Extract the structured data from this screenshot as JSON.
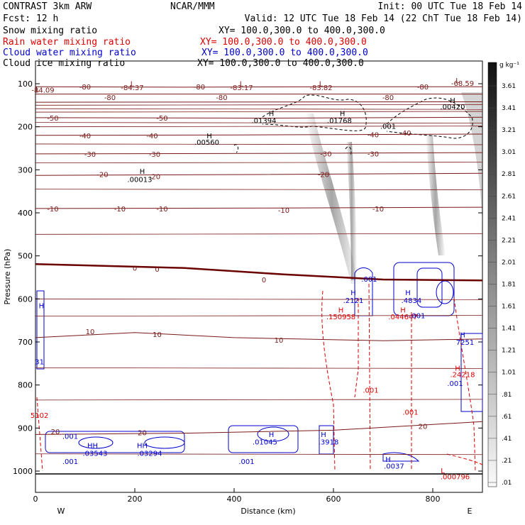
{
  "header": {
    "model": "CONTRAST  3km ARW",
    "center": "NCAR/MMM",
    "init": "Init: 00 UTC Tue 18 Feb 14",
    "fcst": "Fcst:   12 h",
    "valid": "Valid: 12 UTC Tue 18 Feb 14 (22 ChT Tue 18 Feb 14)"
  },
  "fields": [
    {
      "name": "Snow mixing ratio",
      "xy": "XY= 100.0,300.0 to 400.0,300.0",
      "color": "#000000"
    },
    {
      "name": "Rain water mixing ratio",
      "xy": "XY= 100.0,300.0 to 400.0,300.0",
      "color": "#e00000"
    },
    {
      "name": "Cloud water mixing ratio",
      "xy": "XY= 100.0,300.0 to 400.0,300.0",
      "color": "#0000cc"
    },
    {
      "name": "Cloud ice mixing ratio",
      "xy": "XY= 100.0,300.0 to 400.0,300.0",
      "color": "#000000"
    }
  ],
  "colors": {
    "temperature": "#7a1a1a",
    "freezing": "#6a0000",
    "rain": "#e00000",
    "cloud_water": "#0000cc",
    "cloud_ice": "#000000"
  },
  "chart_data": {
    "type": "cross-section",
    "ylabel": "Pressure (hPa)",
    "xlabel": "Distance (km)",
    "x_range": [
      0,
      900
    ],
    "y_range": [
      1020,
      50
    ],
    "x_ticks": [
      0,
      200,
      400,
      600,
      800
    ],
    "y_ticks": [
      100,
      200,
      300,
      400,
      500,
      600,
      700,
      800,
      900,
      1000
    ],
    "endpoints": {
      "left": "W",
      "right": "E"
    },
    "colorbar": {
      "unit": "g kg⁻¹",
      "labels": [
        "3.61",
        "3.41",
        "3.21",
        "3.01",
        "2.81",
        "2.61",
        "2.41",
        "2.21",
        "2.01",
        "1.81",
        "1.61",
        "1.41",
        "1.21",
        "1.01",
        ".81",
        ".61",
        ".41",
        ".21",
        ".01"
      ]
    },
    "temperature_contours": [
      {
        "label": "-80",
        "points": [
          [
            0,
            107
          ],
          [
            300,
            108
          ],
          [
            600,
            107
          ],
          [
            900,
            107
          ]
        ]
      },
      {
        "label": "-70",
        "points": [
          [
            0,
            124
          ],
          [
            900,
            124
          ]
        ]
      },
      {
        "label": "-60",
        "points": [
          [
            0,
            143
          ],
          [
            900,
            142
          ]
        ]
      },
      {
        "label": "-50",
        "points": [
          [
            0,
            179
          ],
          [
            450,
            180
          ],
          [
            900,
            178
          ]
        ]
      },
      {
        "label": "-40",
        "points": [
          [
            0,
            220
          ],
          [
            400,
            219
          ],
          [
            900,
            217
          ]
        ]
      },
      {
        "label": "-30",
        "points": [
          [
            0,
            263
          ],
          [
            450,
            262
          ],
          [
            900,
            260
          ]
        ]
      },
      {
        "label": "-20",
        "points": [
          [
            0,
            313
          ],
          [
            450,
            311
          ],
          [
            900,
            308
          ]
        ]
      },
      {
        "label": "-10",
        "points": [
          [
            0,
            390
          ],
          [
            450,
            389
          ],
          [
            900,
            387
          ]
        ]
      },
      {
        "label": "0",
        "points": [
          [
            0,
            519
          ],
          [
            300,
            528
          ],
          [
            500,
            543
          ],
          [
            700,
            555
          ],
          [
            900,
            557
          ]
        ]
      },
      {
        "label": "10",
        "points": [
          [
            0,
            690
          ],
          [
            200,
            678
          ],
          [
            400,
            690
          ],
          [
            700,
            697
          ],
          [
            900,
            693
          ]
        ]
      },
      {
        "label": "20",
        "points": [
          [
            0,
            915
          ],
          [
            300,
            912
          ],
          [
            600,
            905
          ],
          [
            900,
            885
          ]
        ]
      }
    ],
    "contour_labels": [
      {
        "text": "-80",
        "x": 100,
        "p": 107,
        "field": "temperature"
      },
      {
        "text": "-80",
        "x": 330,
        "p": 107,
        "field": "temperature"
      },
      {
        "text": "-80",
        "x": 780,
        "p": 107,
        "field": "temperature"
      },
      {
        "text": "-80",
        "x": 150,
        "p": 131,
        "field": "temperature"
      },
      {
        "text": "-80",
        "x": 375,
        "p": 131,
        "field": "temperature"
      },
      {
        "text": "-80",
        "x": 710,
        "p": 131,
        "field": "temperature"
      },
      {
        "text": "-50",
        "x": 35,
        "p": 179,
        "field": "temperature"
      },
      {
        "text": "-50",
        "x": 255,
        "p": 179,
        "field": "temperature"
      },
      {
        "text": "-40",
        "x": 100,
        "p": 220,
        "field": "temperature"
      },
      {
        "text": "-40",
        "x": 235,
        "p": 220,
        "field": "temperature"
      },
      {
        "text": "-40",
        "x": 680,
        "p": 218,
        "field": "temperature"
      },
      {
        "text": "-40",
        "x": 745,
        "p": 214,
        "field": "temperature"
      },
      {
        "text": "-30",
        "x": 110,
        "p": 263,
        "field": "temperature"
      },
      {
        "text": "-30",
        "x": 240,
        "p": 263,
        "field": "temperature"
      },
      {
        "text": "-30",
        "x": 585,
        "p": 262,
        "field": "temperature"
      },
      {
        "text": "-30",
        "x": 680,
        "p": 262,
        "field": "temperature"
      },
      {
        "text": "-20",
        "x": 135,
        "p": 310,
        "field": "temperature"
      },
      {
        "text": "-20",
        "x": 240,
        "p": 315,
        "field": "temperature"
      },
      {
        "text": "-20",
        "x": 580,
        "p": 310,
        "field": "temperature"
      },
      {
        "text": "-10",
        "x": 35,
        "p": 390,
        "field": "temperature"
      },
      {
        "text": "-10",
        "x": 170,
        "p": 390,
        "field": "temperature"
      },
      {
        "text": "-10",
        "x": 255,
        "p": 390,
        "field": "temperature"
      },
      {
        "text": "-10",
        "x": 500,
        "p": 393,
        "field": "temperature"
      },
      {
        "text": "-10",
        "x": 690,
        "p": 390,
        "field": "temperature"
      },
      {
        "text": "0",
        "x": 200,
        "p": 528,
        "field": "temperature"
      },
      {
        "text": "0",
        "x": 245,
        "p": 530,
        "field": "temperature"
      },
      {
        "text": "0",
        "x": 460,
        "p": 555,
        "field": "temperature"
      },
      {
        "text": "10",
        "x": 110,
        "p": 675,
        "field": "temperature"
      },
      {
        "text": "10",
        "x": 245,
        "p": 682,
        "field": "temperature"
      },
      {
        "text": "10",
        "x": 490,
        "p": 695,
        "field": "temperature"
      },
      {
        "text": "20",
        "x": 40,
        "p": 908,
        "field": "temperature"
      },
      {
        "text": "20",
        "x": 215,
        "p": 910,
        "field": "temperature"
      },
      {
        "text": "20",
        "x": 780,
        "p": 895,
        "field": "temperature"
      },
      {
        "text": "L",
        "x": 195,
        "p": 99,
        "field": "temperature"
      },
      {
        "text": "L",
        "x": 415,
        "p": 99,
        "field": "temperature"
      },
      {
        "text": "L",
        "x": 575,
        "p": 99,
        "field": "temperature"
      },
      {
        "text": "L",
        "x": 850,
        "p": 92,
        "field": "temperature"
      },
      {
        "text": "L",
        "x": 4,
        "p": 112,
        "field": "temperature"
      },
      {
        "text": "-84.09",
        "x": 15,
        "p": 114,
        "field": "temperature"
      },
      {
        "text": "-84.37",
        "x": 195,
        "p": 108,
        "field": "temperature"
      },
      {
        "text": "-83.17",
        "x": 415,
        "p": 108,
        "field": "temperature"
      },
      {
        "text": "-83.82",
        "x": 575,
        "p": 108,
        "field": "temperature"
      },
      {
        "text": "-68.59",
        "x": 860,
        "p": 98,
        "field": "temperature"
      },
      {
        "text": "H",
        "x": 840,
        "p": 138,
        "field": "cloud_ice"
      },
      {
        "text": ".00420",
        "x": 840,
        "p": 153,
        "field": "cloud_ice"
      },
      {
        "text": "H",
        "x": 475,
        "p": 168,
        "field": "cloud_ice"
      },
      {
        "text": ".01394",
        "x": 460,
        "p": 185,
        "field": "cloud_ice"
      },
      {
        "text": "H",
        "x": 618,
        "p": 168,
        "field": "cloud_ice"
      },
      {
        "text": ".01768",
        "x": 612,
        "p": 185,
        "field": "cloud_ice"
      },
      {
        "text": ".001",
        "x": 710,
        "p": 198,
        "field": "cloud_ice"
      },
      {
        "text": "H",
        "x": 350,
        "p": 220,
        "field": "cloud_ice"
      },
      {
        "text": ".00560",
        "x": 345,
        "p": 235,
        "field": "cloud_ice"
      },
      {
        "text": "H",
        "x": 215,
        "p": 303,
        "field": "cloud_ice"
      },
      {
        "text": ".00013",
        "x": 210,
        "p": 322,
        "field": "cloud_ice"
      },
      {
        "text": ".001",
        "x": 672,
        "p": 553,
        "field": "cloud_water"
      },
      {
        "text": "H",
        "x": 640,
        "p": 585,
        "field": "cloud_water"
      },
      {
        "text": ".2121",
        "x": 640,
        "p": 603,
        "field": "cloud_water"
      },
      {
        "text": "H",
        "x": 750,
        "p": 585,
        "field": "cloud_water"
      },
      {
        "text": ".4834",
        "x": 757,
        "p": 603,
        "field": "cloud_water"
      },
      {
        "text": "H",
        "x": 615,
        "p": 625,
        "field": "rain"
      },
      {
        "text": ".150958",
        "x": 615,
        "p": 641,
        "field": "rain"
      },
      {
        "text": "H",
        "x": 740,
        "p": 625,
        "field": "rain"
      },
      {
        "text": ".044647",
        "x": 740,
        "p": 641,
        "field": "rain"
      },
      {
        "text": ".001",
        "x": 769,
        "p": 638,
        "field": "cloud_water"
      },
      {
        "text": "H",
        "x": 860,
        "p": 683,
        "field": "cloud_water"
      },
      {
        "text": "7251",
        "x": 865,
        "p": 700,
        "field": "cloud_water"
      },
      {
        "text": "H",
        "x": 850,
        "p": 760,
        "field": "rain"
      },
      {
        "text": ".24218",
        "x": 860,
        "p": 775,
        "field": "rain"
      },
      {
        "text": ".001",
        "x": 845,
        "p": 796,
        "field": "cloud_water"
      },
      {
        "text": ".001",
        "x": 675,
        "p": 811,
        "field": "rain"
      },
      {
        "text": ".001",
        "x": 755,
        "p": 862,
        "field": "rain"
      },
      {
        "text": "5102",
        "x": 8,
        "p": 870,
        "field": "rain"
      },
      {
        "text": "31",
        "x": 8,
        "p": 745,
        "field": "cloud_water"
      },
      {
        "text": "H",
        "x": 12,
        "p": 615,
        "field": "cloud_water"
      },
      {
        "text": ".001",
        "x": 70,
        "p": 918,
        "field": "cloud_water"
      },
      {
        "text": "HH",
        "x": 115,
        "p": 940,
        "field": "cloud_water"
      },
      {
        "text": ".03543",
        "x": 120,
        "p": 958,
        "field": "cloud_water"
      },
      {
        "text": "HH",
        "x": 215,
        "p": 940,
        "field": "cloud_water"
      },
      {
        "text": ".03294",
        "x": 230,
        "p": 958,
        "field": "cloud_water"
      },
      {
        "text": ".001",
        "x": 70,
        "p": 977,
        "field": "cloud_water"
      },
      {
        "text": ".001",
        "x": 425,
        "p": 977,
        "field": "cloud_water"
      },
      {
        "text": "H",
        "x": 475,
        "p": 914,
        "field": "cloud_water"
      },
      {
        "text": ".01045",
        "x": 462,
        "p": 932,
        "field": "cloud_water"
      },
      {
        "text": "H",
        "x": 580,
        "p": 914,
        "field": "cloud_water"
      },
      {
        "text": ".3918",
        "x": 590,
        "p": 932,
        "field": "cloud_water"
      },
      {
        "text": "H",
        "x": 710,
        "p": 972,
        "field": "cloud_water"
      },
      {
        "text": ".0037",
        "x": 722,
        "p": 988,
        "field": "cloud_water"
      },
      {
        "text": ".000796",
        "x": 845,
        "p": 1012,
        "field": "rain"
      },
      {
        "text": "L",
        "x": 820,
        "p": 998,
        "field": "rain"
      }
    ]
  }
}
